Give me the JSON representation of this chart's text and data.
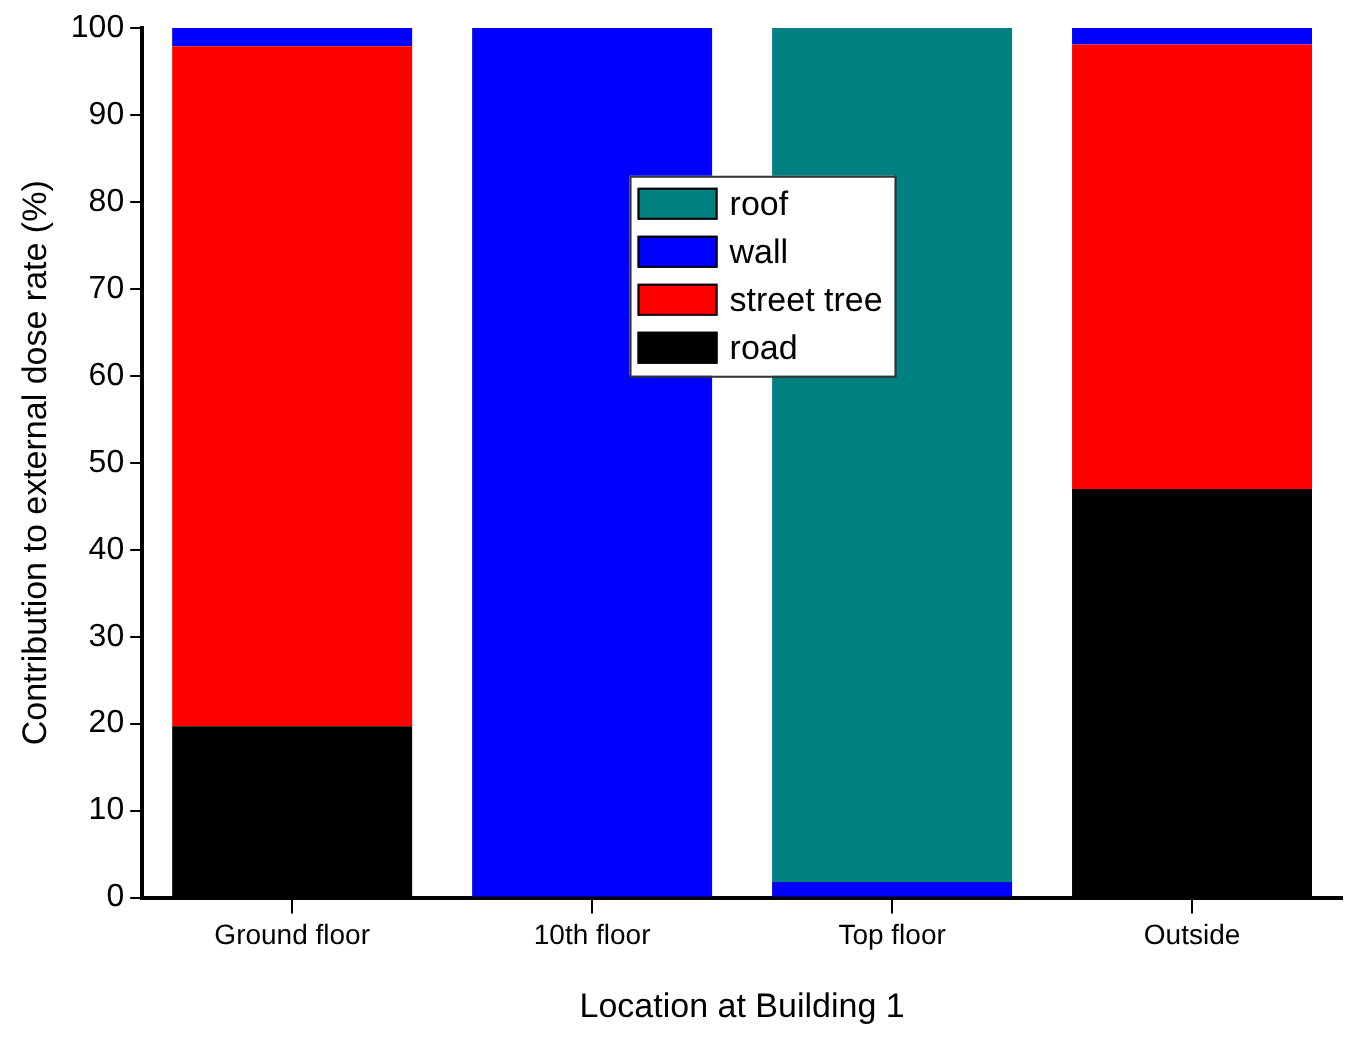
{
  "chart_data": {
    "type": "bar",
    "stacked": true,
    "xlabel": "Location at Building 1",
    "ylabel": "Contribution to external dose rate (%)",
    "categories": [
      "Ground floor",
      "10th floor",
      "Top floor",
      "Outside"
    ],
    "series": [
      {
        "name": "road",
        "color": "#000000",
        "values": [
          19.7,
          null,
          null,
          47.0
        ]
      },
      {
        "name": "street tree",
        "color": "#ff0000",
        "values": [
          78.2,
          null,
          null,
          51.1
        ]
      },
      {
        "name": "wall",
        "color": "#0000ff",
        "values": [
          2.1,
          100,
          1.8,
          1.9
        ]
      },
      {
        "name": "roof",
        "color": "#008080",
        "values": [
          null,
          null,
          98.2,
          null
        ]
      }
    ],
    "ylim": [
      0,
      100
    ],
    "yticks": [
      0,
      10,
      20,
      30,
      40,
      50,
      60,
      70,
      80,
      90,
      100
    ],
    "grid": false,
    "legend": "top"
  }
}
